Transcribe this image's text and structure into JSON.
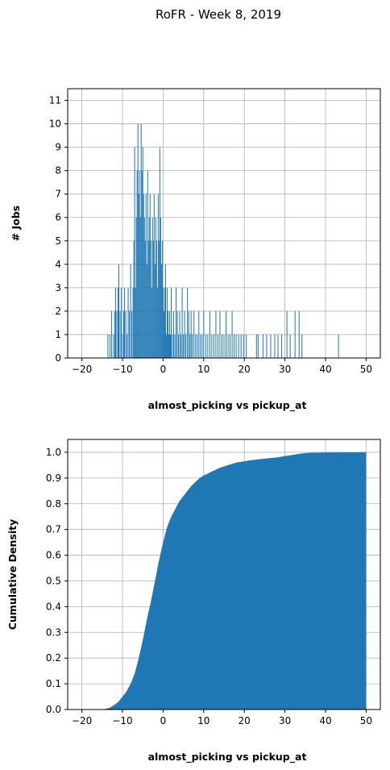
{
  "figure": {
    "title": "RoFR - Week 8, 2019"
  },
  "chart_data": [
    {
      "type": "bar",
      "xlabel": "almost_picking vs pickup_at",
      "ylabel": "# Jobs",
      "xlim": [
        -23.5,
        53.5
      ],
      "ylim": [
        0,
        11.5
      ],
      "xticks": [
        -20,
        -10,
        0,
        10,
        20,
        30,
        40,
        50
      ],
      "yticks": [
        0,
        1,
        2,
        3,
        4,
        5,
        6,
        7,
        8,
        9,
        10,
        11
      ],
      "grid": true,
      "color": "#1f77b4",
      "bin_width": 0.1,
      "x": [
        -13.6,
        -13.1,
        -12.7,
        -12.2,
        -11.9,
        -11.7,
        -11.4,
        -11.1,
        -10.9,
        -10.6,
        -10.3,
        -10.0,
        -9.7,
        -9.5,
        -9.2,
        -8.9,
        -8.6,
        -8.3,
        -8.0,
        -7.7,
        -7.4,
        -7.2,
        -7.0,
        -6.8,
        -6.6,
        -6.4,
        -6.2,
        -6.0,
        -5.8,
        -5.6,
        -5.4,
        -5.2,
        -5.0,
        -4.8,
        -4.6,
        -4.4,
        -4.2,
        -4.0,
        -3.8,
        -3.6,
        -3.4,
        -3.2,
        -3.0,
        -2.8,
        -2.6,
        -2.4,
        -2.2,
        -2.0,
        -1.8,
        -1.6,
        -1.4,
        -1.2,
        -1.0,
        -0.8,
        -0.6,
        -0.4,
        -0.2,
        0.0,
        0.2,
        0.4,
        0.6,
        0.8,
        1.0,
        1.2,
        1.4,
        1.6,
        1.8,
        2.0,
        2.3,
        2.6,
        2.9,
        3.2,
        3.5,
        3.8,
        4.1,
        4.4,
        4.7,
        5.0,
        5.3,
        5.6,
        6.0,
        6.3,
        6.6,
        6.9,
        7.2,
        7.6,
        8.0,
        8.4,
        8.8,
        9.2,
        9.6,
        10.0,
        10.5,
        11.0,
        11.5,
        12.0,
        12.5,
        13.0,
        13.5,
        14.0,
        14.5,
        15.0,
        15.5,
        16.0,
        16.5,
        17.0,
        17.5,
        18.0,
        18.6,
        19.2,
        19.8,
        20.5,
        23.0,
        23.4,
        24.6,
        25.5,
        26.5,
        27.5,
        28.3,
        29.2,
        30.5,
        31.3,
        32.5,
        33.5,
        34.2,
        43.2
      ],
      "values": [
        1,
        1,
        2,
        1,
        2,
        3,
        2,
        3,
        4,
        2,
        3,
        1,
        2,
        3,
        2,
        1,
        3,
        2,
        4,
        2,
        3,
        5,
        9,
        3,
        6,
        8,
        10,
        7,
        8,
        6,
        10,
        8,
        9,
        7,
        6,
        5,
        7,
        4,
        8,
        5,
        6,
        7,
        5,
        3,
        6,
        5,
        7,
        4,
        6,
        5,
        3,
        7,
        5,
        9,
        6,
        4,
        5,
        3,
        2,
        3,
        4,
        1,
        3,
        2,
        1,
        2,
        1,
        3,
        1,
        2,
        1,
        3,
        2,
        1,
        2,
        1,
        3,
        1,
        2,
        1,
        3,
        2,
        1,
        2,
        1,
        2,
        1,
        1,
        2,
        1,
        1,
        2,
        1,
        1,
        2,
        1,
        1,
        2,
        1,
        2,
        1,
        1,
        2,
        1,
        1,
        2,
        1,
        1,
        1,
        1,
        1,
        1,
        1,
        1,
        1,
        1,
        1,
        1,
        1,
        1,
        2,
        1,
        2,
        2,
        1,
        1
      ]
    },
    {
      "type": "area",
      "xlabel": "almost_picking vs pickup_at",
      "ylabel": "Cumulative Density",
      "xlim": [
        -23.5,
        53.5
      ],
      "ylim": [
        0,
        1.05
      ],
      "xticks": [
        -20,
        -10,
        0,
        10,
        20,
        30,
        40,
        50
      ],
      "yticks": [
        0.0,
        0.1,
        0.2,
        0.3,
        0.4,
        0.5,
        0.6,
        0.7,
        0.8,
        0.9,
        1.0
      ],
      "grid": true,
      "color": "#1f77b4",
      "x": [
        -20,
        -15,
        -14,
        -13,
        -12,
        -11,
        -10,
        -9,
        -8,
        -7,
        -6,
        -5,
        -4,
        -3,
        -2,
        -1,
        0,
        1,
        2,
        3,
        4,
        5,
        6,
        7,
        8,
        9,
        10,
        12,
        14,
        16,
        18,
        20,
        22,
        25,
        28,
        30,
        32,
        34,
        36,
        40,
        44,
        48,
        50
      ],
      "values": [
        0,
        0,
        0.003,
        0.008,
        0.018,
        0.03,
        0.05,
        0.07,
        0.1,
        0.14,
        0.2,
        0.27,
        0.35,
        0.42,
        0.5,
        0.58,
        0.65,
        0.71,
        0.75,
        0.78,
        0.81,
        0.83,
        0.85,
        0.87,
        0.885,
        0.9,
        0.91,
        0.925,
        0.94,
        0.95,
        0.96,
        0.965,
        0.97,
        0.975,
        0.98,
        0.985,
        0.99,
        0.995,
        0.998,
        0.999,
        1.0,
        1.0,
        1.0
      ]
    }
  ]
}
